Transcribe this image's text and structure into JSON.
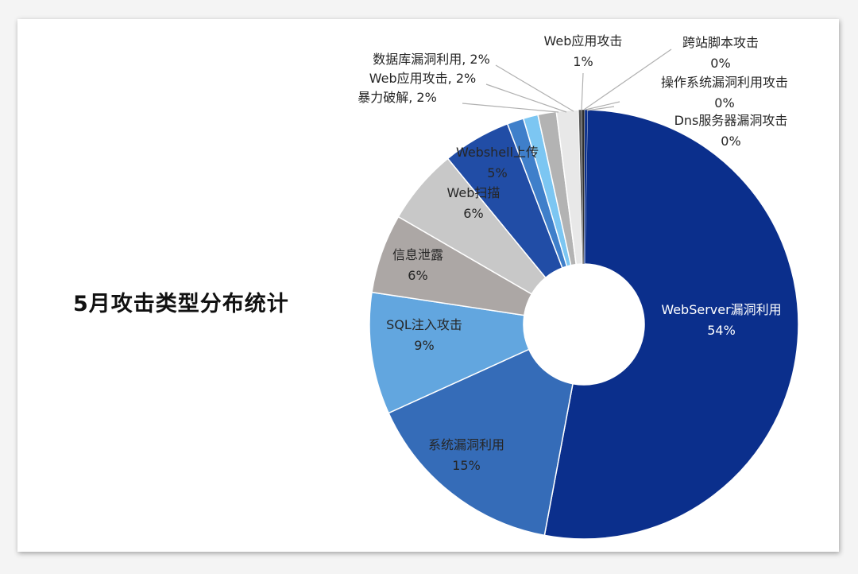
{
  "chart_data": {
    "type": "pie",
    "donut": true,
    "title": "5月攻击类型分布统计",
    "slices": [
      {
        "name": "WebServer漏洞利用",
        "value": 54,
        "label": "54%",
        "color": "#0b2f8c"
      },
      {
        "name": "系统漏洞利用",
        "value": 15,
        "label": "15%",
        "color": "#356cb8"
      },
      {
        "name": "SQL注入攻击",
        "value": 9,
        "label": "9%",
        "color": "#62a6df"
      },
      {
        "name": "信息泄露",
        "value": 6,
        "label": "6%",
        "color": "#aca7a5"
      },
      {
        "name": "Web扫描",
        "value": 6,
        "label": "6%",
        "color": "#c8c8c8"
      },
      {
        "name": "Webshell上传",
        "value": 5,
        "label": "5%",
        "color": "#214da6"
      },
      {
        "name": "暴力破解",
        "value": 2,
        "label": "2%",
        "color": "#3f7fca"
      },
      {
        "name": "Web应用攻击",
        "value": 2,
        "label": "2%",
        "color": "#7cc6f2"
      },
      {
        "name": "数据库漏洞利用",
        "value": 2,
        "label": "2%",
        "color": "#b3b3b3"
      },
      {
        "name": "Web应用攻击",
        "value": 1,
        "label": "1%",
        "color": "#e8e8e8"
      },
      {
        "name": "跨站脚本攻击",
        "value": 0,
        "label": "0%",
        "color": "#5a5a5a"
      },
      {
        "name": "操作系统漏洞利用攻击",
        "value": 0,
        "label": "0%",
        "color": "#2d2d2d"
      },
      {
        "name": "Dns服务器漏洞攻击",
        "value": 0,
        "label": "0%",
        "color": "#0b2f8c"
      }
    ]
  }
}
